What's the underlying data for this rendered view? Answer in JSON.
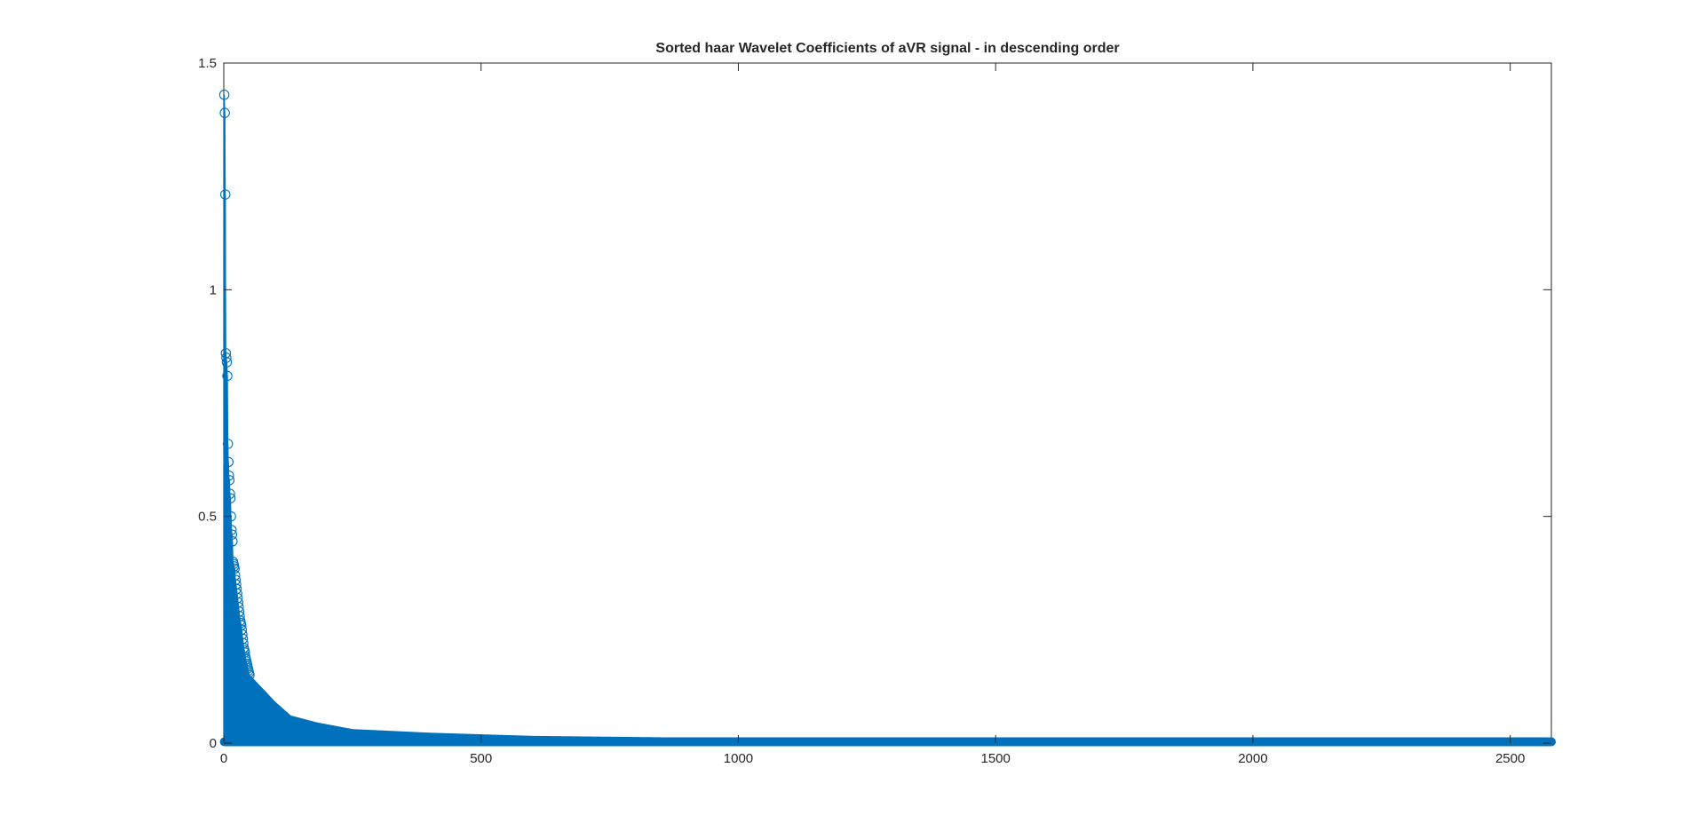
{
  "chart_data": {
    "type": "stem",
    "title": "Sorted haar Wavelet Coefficients of aVR signal - in descending order",
    "xlabel": "",
    "ylabel": "",
    "xlim": [
      0,
      2580
    ],
    "ylim": [
      0,
      1.5
    ],
    "xticks": [
      0,
      500,
      1000,
      1500,
      2000,
      2500
    ],
    "yticks": [
      0,
      0.5,
      1,
      1.5
    ],
    "xtick_labels": [
      "0",
      "500",
      "1000",
      "1500",
      "2000",
      "2500"
    ],
    "ytick_labels": [
      "0",
      "0.5",
      "1",
      "1.5"
    ],
    "grid": false,
    "legend": "none",
    "color": "#0072BD",
    "marker": "circle",
    "n_points": 2580,
    "series": [
      {
        "values_head": [
          1.43,
          1.39,
          1.21,
          0.86,
          0.85,
          0.84,
          0.81,
          0.66,
          0.62,
          0.59,
          0.58,
          0.55,
          0.54,
          0.5,
          0.47,
          0.46,
          0.445,
          0.4,
          0.395,
          0.39,
          0.385,
          0.37,
          0.36,
          0.35,
          0.34,
          0.33,
          0.32,
          0.31,
          0.3,
          0.29,
          0.28,
          0.27,
          0.265,
          0.26,
          0.25,
          0.24,
          0.23,
          0.22,
          0.21,
          0.205,
          0.2,
          0.19,
          0.185,
          0.18,
          0.175,
          0.17,
          0.165,
          0.16,
          0.155,
          0.15
        ],
        "decay_profile": [
          [
            50,
            0.15
          ],
          [
            75,
            0.12
          ],
          [
            100,
            0.09
          ],
          [
            130,
            0.06
          ],
          [
            180,
            0.045
          ],
          [
            250,
            0.03
          ],
          [
            400,
            0.022
          ],
          [
            600,
            0.015
          ],
          [
            1000,
            0.01
          ],
          [
            1500,
            0.007
          ],
          [
            2000,
            0.005
          ],
          [
            2580,
            0.002
          ]
        ]
      }
    ]
  }
}
